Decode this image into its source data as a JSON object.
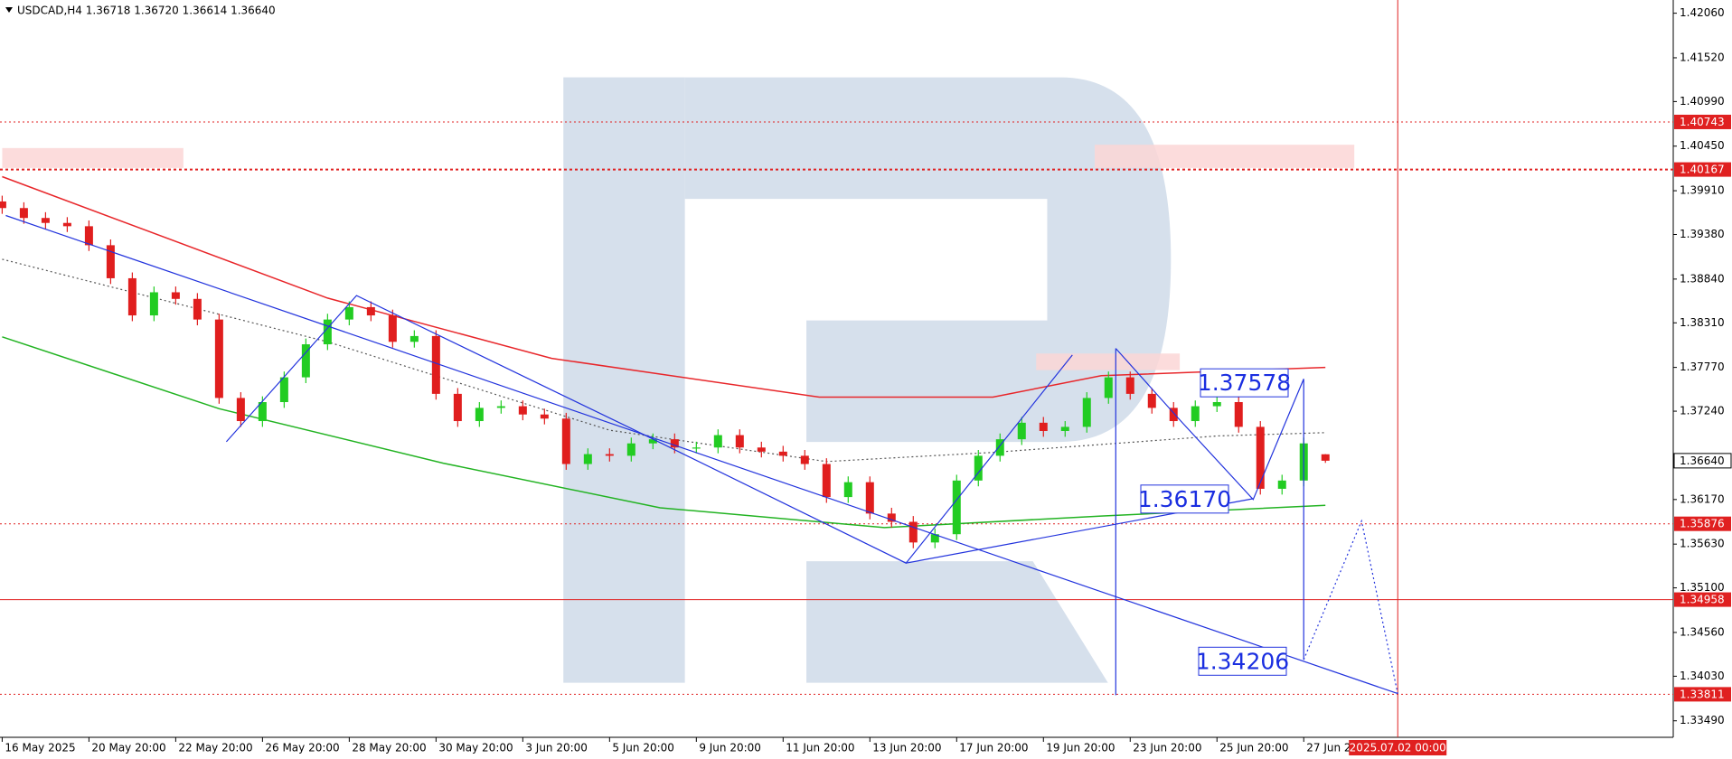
{
  "chart_data": {
    "type": "candlestick",
    "title": "USDCAD,H4 1.36718 1.36720 1.36614 1.36640",
    "up_color": "#22cc22",
    "down_color": "#e01e1e",
    "x": [
      0,
      3,
      6,
      9,
      12,
      15,
      18,
      21,
      24,
      27,
      30,
      33,
      36,
      39,
      42,
      45,
      48,
      51,
      54,
      57,
      60,
      63,
      66,
      69,
      72,
      75,
      78,
      81,
      84,
      87,
      90,
      93,
      96,
      99,
      102,
      105,
      108,
      111,
      114,
      117,
      120,
      123,
      126,
      129,
      132,
      135,
      138,
      141,
      144,
      147,
      150,
      153,
      156,
      159,
      162,
      165,
      168,
      171,
      174,
      177,
      180,
      183
    ],
    "open": [
      1.3978,
      1.397,
      1.3958,
      1.3952,
      1.3948,
      1.3925,
      1.3885,
      1.384,
      1.3868,
      1.386,
      1.3835,
      1.374,
      1.3712,
      1.3735,
      1.3765,
      1.3805,
      1.3835,
      1.385,
      1.384,
      1.3808,
      1.3815,
      1.3745,
      1.3712,
      1.3728,
      1.373,
      1.372,
      1.3715,
      1.366,
      1.3672,
      1.367,
      1.3685,
      1.369,
      1.368,
      1.368,
      1.3695,
      1.368,
      1.3675,
      1.367,
      1.366,
      1.362,
      1.3638,
      1.36,
      1.359,
      1.3565,
      1.3575,
      1.364,
      1.367,
      1.369,
      1.371,
      1.37,
      1.3705,
      1.374,
      1.3765,
      1.3745,
      1.3728,
      1.3712,
      1.373,
      1.3735,
      1.3705,
      1.363,
      1.364,
      1.36718
    ],
    "high": [
      1.3985,
      1.3977,
      1.3965,
      1.3959,
      1.3955,
      1.3932,
      1.3892,
      1.3875,
      1.3875,
      1.3867,
      1.3842,
      1.3747,
      1.3742,
      1.3772,
      1.3812,
      1.3842,
      1.3857,
      1.3857,
      1.3847,
      1.3822,
      1.3822,
      1.3752,
      1.3735,
      1.3737,
      1.3737,
      1.3727,
      1.3722,
      1.3679,
      1.3679,
      1.3692,
      1.3697,
      1.3697,
      1.3687,
      1.3702,
      1.3702,
      1.3687,
      1.3682,
      1.3677,
      1.3667,
      1.3645,
      1.3645,
      1.3607,
      1.3597,
      1.3582,
      1.3647,
      1.3677,
      1.3697,
      1.3717,
      1.3717,
      1.3712,
      1.3747,
      1.3772,
      1.3772,
      1.3752,
      1.3735,
      1.3737,
      1.3742,
      1.3742,
      1.3712,
      1.3647,
      1.3692,
      1.3672
    ],
    "low": [
      1.3963,
      1.3951,
      1.3945,
      1.3941,
      1.3918,
      1.3878,
      1.3833,
      1.3833,
      1.3853,
      1.3828,
      1.3733,
      1.3705,
      1.3705,
      1.3728,
      1.3758,
      1.3798,
      1.3828,
      1.3833,
      1.3801,
      1.3801,
      1.3738,
      1.3705,
      1.3705,
      1.3721,
      1.3713,
      1.3708,
      1.3653,
      1.3653,
      1.3663,
      1.3663,
      1.3678,
      1.3673,
      1.3673,
      1.3673,
      1.3673,
      1.3668,
      1.3663,
      1.3653,
      1.3613,
      1.3613,
      1.3593,
      1.3583,
      1.3558,
      1.3558,
      1.3568,
      1.3633,
      1.3663,
      1.3683,
      1.3693,
      1.3693,
      1.3698,
      1.3733,
      1.3738,
      1.3721,
      1.3705,
      1.3705,
      1.3723,
      1.3698,
      1.3623,
      1.3623,
      1.3633,
      1.36614
    ],
    "close": [
      1.397,
      1.3958,
      1.3952,
      1.3948,
      1.3925,
      1.3885,
      1.384,
      1.3868,
      1.386,
      1.3835,
      1.374,
      1.3712,
      1.3735,
      1.3765,
      1.3805,
      1.3835,
      1.385,
      1.384,
      1.3808,
      1.3815,
      1.3745,
      1.3712,
      1.3728,
      1.373,
      1.372,
      1.3715,
      1.366,
      1.3672,
      1.367,
      1.3685,
      1.369,
      1.368,
      1.368,
      1.3695,
      1.368,
      1.3675,
      1.367,
      1.366,
      1.362,
      1.3638,
      1.36,
      1.359,
      1.3565,
      1.3575,
      1.364,
      1.367,
      1.369,
      1.371,
      1.37,
      1.3705,
      1.374,
      1.3765,
      1.3745,
      1.3728,
      1.3712,
      1.373,
      1.3735,
      1.3705,
      1.363,
      1.364,
      1.3685,
      1.3664
    ],
    "xlim": [
      -0.3,
      231.1
    ],
    "ylim": [
      1.3329,
      1.4222
    ],
    "yticks": [
      {
        "value": 1.4206,
        "label": "1.42060"
      },
      {
        "value": 1.4152,
        "label": "1.41520"
      },
      {
        "value": 1.4099,
        "label": "1.40990"
      },
      {
        "value": 1.4045,
        "label": "1.40450"
      },
      {
        "value": 1.3991,
        "label": "1.39910"
      },
      {
        "value": 1.3938,
        "label": "1.39380"
      },
      {
        "value": 1.3884,
        "label": "1.38840"
      },
      {
        "value": 1.3831,
        "label": "1.38310"
      },
      {
        "value": 1.3777,
        "label": "1.37770"
      },
      {
        "value": 1.3724,
        "label": "1.37240"
      },
      {
        "value": 1.3617,
        "label": "1.36170"
      },
      {
        "value": 1.3563,
        "label": "1.35630"
      },
      {
        "value": 1.351,
        "label": "1.35100"
      },
      {
        "value": 1.3456,
        "label": "1.34560"
      },
      {
        "value": 1.3403,
        "label": "1.34030"
      },
      {
        "value": 1.3349,
        "label": "1.33490"
      }
    ],
    "xticks": [
      {
        "value": 0,
        "label": "16 May 2025"
      },
      {
        "value": 12,
        "label": "20 May 20:00"
      },
      {
        "value": 24,
        "label": "22 May 20:00"
      },
      {
        "value": 36,
        "label": "26 May 20:00"
      },
      {
        "value": 48,
        "label": "28 May 20:00"
      },
      {
        "value": 60,
        "label": "30 May 20:00"
      },
      {
        "value": 72,
        "label": "3 Jun 20:00"
      },
      {
        "value": 84,
        "label": "5 Jun 20:00"
      },
      {
        "value": 96,
        "label": "9 Jun 20:00"
      },
      {
        "value": 108,
        "label": "11 Jun 20:00"
      },
      {
        "value": 120,
        "label": "13 Jun 20:00"
      },
      {
        "value": 132,
        "label": "17 Jun 20:00"
      },
      {
        "value": 144,
        "label": "19 Jun 20:00"
      },
      {
        "value": 156,
        "label": "23 Jun 20:00"
      },
      {
        "value": 168,
        "label": "25 Jun 20:00"
      },
      {
        "value": 180,
        "label": "27 Jun 2"
      }
    ],
    "lines": [
      {
        "color": "#e8262a",
        "style": "solid",
        "x": [
          0,
          45,
          76,
          113,
          137,
          152,
          183
        ],
        "values": [
          1.4008,
          1.3861,
          1.3788,
          1.3741,
          1.3741,
          1.3767,
          1.3777
        ]
      },
      {
        "color": "#22b322",
        "style": "solid",
        "x": [
          0,
          30,
          61,
          91,
          122,
          152,
          183
        ],
        "values": [
          1.3814,
          1.3727,
          1.3661,
          1.3607,
          1.3583,
          1.3597,
          1.361
        ]
      },
      {
        "color": "#555555",
        "style": "dotted",
        "x": [
          0,
          45,
          84,
          114,
          137,
          168,
          183
        ],
        "values": [
          1.3908,
          1.3808,
          1.3701,
          1.3663,
          1.3674,
          1.3694,
          1.3698
        ]
      }
    ],
    "drawings": [
      {
        "color": "#2233dd",
        "style": "solid",
        "x": [
          31,
          49,
          87,
          125,
          148
        ],
        "values": [
          1.3687,
          1.3864,
          1.3703,
          1.354,
          1.3792
        ]
      },
      {
        "color": "#2233dd",
        "style": "solid",
        "x": [
          154,
          163,
          173,
          180
        ],
        "values": [
          1.38,
          1.3712,
          1.3617,
          1.3763
        ]
      },
      {
        "color": "#2233dd",
        "style": "solid",
        "x": [
          154,
          154
        ],
        "values": [
          1.38,
          1.338
        ]
      },
      {
        "color": "#2233dd",
        "style": "solid",
        "x": [
          180,
          180
        ],
        "values": [
          1.3763,
          1.3423
        ]
      },
      {
        "color": "#2233dd",
        "style": "solid",
        "x": [
          0.5,
          193
        ],
        "values": [
          1.3961,
          1.3382
        ]
      },
      {
        "color": "#2233dd",
        "style": "solid",
        "x": [
          125,
          173
        ],
        "values": [
          1.354,
          1.3618
        ]
      },
      {
        "color": "#2233dd",
        "style": "dotted",
        "x": [
          180,
          188,
          193
        ],
        "values": [
          1.3423,
          1.3591,
          1.3382
        ]
      }
    ],
    "levels": [
      {
        "value": 1.40743,
        "style": "dotted",
        "color": "#e02020"
      },
      {
        "value": 1.40167,
        "style": "dashed",
        "color": "#e02020"
      },
      {
        "value": 1.35876,
        "style": "dotted",
        "color": "#e02020"
      },
      {
        "value": 1.34958,
        "style": "solid",
        "color": "#e02020"
      },
      {
        "value": 1.33811,
        "style": "dotted",
        "color": "#e02020"
      }
    ],
    "current_price": {
      "value": 1.3664,
      "label": "1.36640"
    },
    "time_marker": {
      "value": 193,
      "label": "2025.07.02 00:00",
      "color": "#e02020"
    },
    "annotations": [
      {
        "value": 1.37578,
        "label": "1.37578"
      },
      {
        "value": 1.3617,
        "label": "1.36170"
      },
      {
        "value": 1.34206,
        "label": "1.34206"
      }
    ]
  }
}
